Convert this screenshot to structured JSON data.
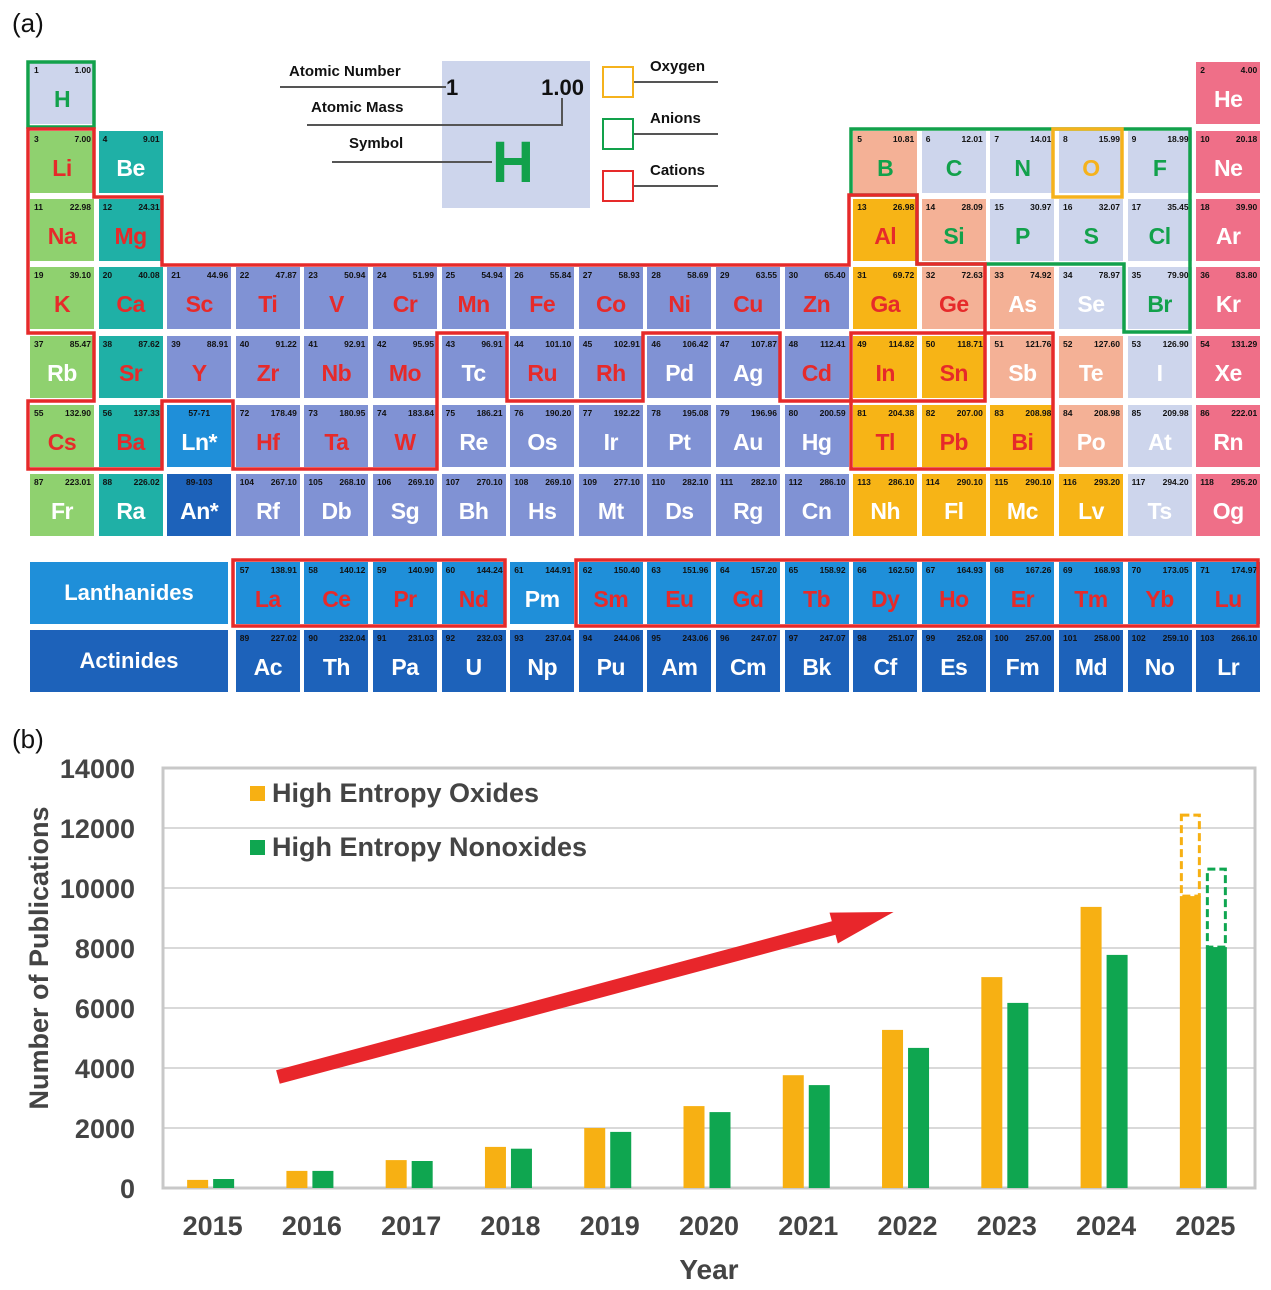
{
  "panel_a_label": "(a)",
  "panel_b_label": "(b)",
  "key": {
    "atomic_number_label": "Atomic Number",
    "atomic_mass_label": "Atomic Mass",
    "symbol_label": "Symbol",
    "example_number": "1",
    "example_mass": "1.00",
    "example_symbol": "H",
    "legend": [
      {
        "label": "Oxygen",
        "color": "#f5b21c"
      },
      {
        "label": "Anions",
        "color": "#12a14b"
      },
      {
        "label": "Cations",
        "color": "#e62a2a"
      }
    ]
  },
  "colors": {
    "nonmetal": "#cdd5ec",
    "alkali": "#8fd16f",
    "alkaline_earth": "#1fb0a6",
    "transition": "#8092d4",
    "post_transition": "#f7b416",
    "metalloid": "#f4b196",
    "noble": "#ef6f88",
    "lanthanide": "#1f8fd9",
    "actinide": "#1d62ba",
    "cation_text": "#e62a2a",
    "anion_text": "#12a14b",
    "oxygen_text": "#f5b21c",
    "plain_text": "#ffffff"
  },
  "series_labels": {
    "lanthanides": "Lanthanides",
    "actinides": "Actinides"
  },
  "elements": [
    {
      "n": "1",
      "m": "1.00",
      "s": "H",
      "r": 1,
      "c": 1,
      "cat": "nonmetal",
      "role": "anion"
    },
    {
      "n": "2",
      "m": "4.00",
      "s": "He",
      "r": 1,
      "c": 18,
      "cat": "noble",
      "role": "plain"
    },
    {
      "n": "3",
      "m": "7.00",
      "s": "Li",
      "r": 2,
      "c": 1,
      "cat": "alkali",
      "role": "cation"
    },
    {
      "n": "4",
      "m": "9.01",
      "s": "Be",
      "r": 2,
      "c": 2,
      "cat": "alkaline_earth",
      "role": "plain"
    },
    {
      "n": "5",
      "m": "10.81",
      "s": "B",
      "r": 2,
      "c": 13,
      "cat": "metalloid",
      "role": "anion"
    },
    {
      "n": "6",
      "m": "12.01",
      "s": "C",
      "r": 2,
      "c": 14,
      "cat": "nonmetal",
      "role": "anion"
    },
    {
      "n": "7",
      "m": "14.01",
      "s": "N",
      "r": 2,
      "c": 15,
      "cat": "nonmetal",
      "role": "anion"
    },
    {
      "n": "8",
      "m": "15.99",
      "s": "O",
      "r": 2,
      "c": 16,
      "cat": "nonmetal",
      "role": "oxygen"
    },
    {
      "n": "9",
      "m": "18.99",
      "s": "F",
      "r": 2,
      "c": 17,
      "cat": "nonmetal",
      "role": "anion"
    },
    {
      "n": "10",
      "m": "20.18",
      "s": "Ne",
      "r": 2,
      "c": 18,
      "cat": "noble",
      "role": "plain"
    },
    {
      "n": "11",
      "m": "22.98",
      "s": "Na",
      "r": 3,
      "c": 1,
      "cat": "alkali",
      "role": "cation"
    },
    {
      "n": "12",
      "m": "24.31",
      "s": "Mg",
      "r": 3,
      "c": 2,
      "cat": "alkaline_earth",
      "role": "cation"
    },
    {
      "n": "13",
      "m": "26.98",
      "s": "Al",
      "r": 3,
      "c": 13,
      "cat": "post_transition",
      "role": "cation"
    },
    {
      "n": "14",
      "m": "28.09",
      "s": "Si",
      "r": 3,
      "c": 14,
      "cat": "metalloid",
      "role": "anion"
    },
    {
      "n": "15",
      "m": "30.97",
      "s": "P",
      "r": 3,
      "c": 15,
      "cat": "nonmetal",
      "role": "anion"
    },
    {
      "n": "16",
      "m": "32.07",
      "s": "S",
      "r": 3,
      "c": 16,
      "cat": "nonmetal",
      "role": "anion"
    },
    {
      "n": "17",
      "m": "35.45",
      "s": "Cl",
      "r": 3,
      "c": 17,
      "cat": "nonmetal",
      "role": "anion"
    },
    {
      "n": "18",
      "m": "39.90",
      "s": "Ar",
      "r": 3,
      "c": 18,
      "cat": "noble",
      "role": "plain"
    },
    {
      "n": "19",
      "m": "39.10",
      "s": "K",
      "r": 4,
      "c": 1,
      "cat": "alkali",
      "role": "cation"
    },
    {
      "n": "20",
      "m": "40.08",
      "s": "Ca",
      "r": 4,
      "c": 2,
      "cat": "alkaline_earth",
      "role": "cation"
    },
    {
      "n": "21",
      "m": "44.96",
      "s": "Sc",
      "r": 4,
      "c": 3,
      "cat": "transition",
      "role": "cation"
    },
    {
      "n": "22",
      "m": "47.87",
      "s": "Ti",
      "r": 4,
      "c": 4,
      "cat": "transition",
      "role": "cation"
    },
    {
      "n": "23",
      "m": "50.94",
      "s": "V",
      "r": 4,
      "c": 5,
      "cat": "transition",
      "role": "cation"
    },
    {
      "n": "24",
      "m": "51.99",
      "s": "Cr",
      "r": 4,
      "c": 6,
      "cat": "transition",
      "role": "cation"
    },
    {
      "n": "25",
      "m": "54.94",
      "s": "Mn",
      "r": 4,
      "c": 7,
      "cat": "transition",
      "role": "cation"
    },
    {
      "n": "26",
      "m": "55.84",
      "s": "Fe",
      "r": 4,
      "c": 8,
      "cat": "transition",
      "role": "cation"
    },
    {
      "n": "27",
      "m": "58.93",
      "s": "Co",
      "r": 4,
      "c": 9,
      "cat": "transition",
      "role": "cation"
    },
    {
      "n": "28",
      "m": "58.69",
      "s": "Ni",
      "r": 4,
      "c": 10,
      "cat": "transition",
      "role": "cation"
    },
    {
      "n": "29",
      "m": "63.55",
      "s": "Cu",
      "r": 4,
      "c": 11,
      "cat": "transition",
      "role": "cation"
    },
    {
      "n": "30",
      "m": "65.40",
      "s": "Zn",
      "r": 4,
      "c": 12,
      "cat": "transition",
      "role": "cation"
    },
    {
      "n": "31",
      "m": "69.72",
      "s": "Ga",
      "r": 4,
      "c": 13,
      "cat": "post_transition",
      "role": "cation"
    },
    {
      "n": "32",
      "m": "72.63",
      "s": "Ge",
      "r": 4,
      "c": 14,
      "cat": "metalloid",
      "role": "cation"
    },
    {
      "n": "33",
      "m": "74.92",
      "s": "As",
      "r": 4,
      "c": 15,
      "cat": "metalloid",
      "role": "plain"
    },
    {
      "n": "34",
      "m": "78.97",
      "s": "Se",
      "r": 4,
      "c": 16,
      "cat": "nonmetal",
      "role": "plain"
    },
    {
      "n": "35",
      "m": "79.90",
      "s": "Br",
      "r": 4,
      "c": 17,
      "cat": "nonmetal",
      "role": "anion"
    },
    {
      "n": "36",
      "m": "83.80",
      "s": "Kr",
      "r": 4,
      "c": 18,
      "cat": "noble",
      "role": "plain"
    },
    {
      "n": "37",
      "m": "85.47",
      "s": "Rb",
      "r": 5,
      "c": 1,
      "cat": "alkali",
      "role": "plain"
    },
    {
      "n": "38",
      "m": "87.62",
      "s": "Sr",
      "r": 5,
      "c": 2,
      "cat": "alkaline_earth",
      "role": "cation"
    },
    {
      "n": "39",
      "m": "88.91",
      "s": "Y",
      "r": 5,
      "c": 3,
      "cat": "transition",
      "role": "cation"
    },
    {
      "n": "40",
      "m": "91.22",
      "s": "Zr",
      "r": 5,
      "c": 4,
      "cat": "transition",
      "role": "cation"
    },
    {
      "n": "41",
      "m": "92.91",
      "s": "Nb",
      "r": 5,
      "c": 5,
      "cat": "transition",
      "role": "cation"
    },
    {
      "n": "42",
      "m": "95.95",
      "s": "Mo",
      "r": 5,
      "c": 6,
      "cat": "transition",
      "role": "cation"
    },
    {
      "n": "43",
      "m": "96.91",
      "s": "Tc",
      "r": 5,
      "c": 7,
      "cat": "transition",
      "role": "plain"
    },
    {
      "n": "44",
      "m": "101.10",
      "s": "Ru",
      "r": 5,
      "c": 8,
      "cat": "transition",
      "role": "cation"
    },
    {
      "n": "45",
      "m": "102.91",
      "s": "Rh",
      "r": 5,
      "c": 9,
      "cat": "transition",
      "role": "cation"
    },
    {
      "n": "46",
      "m": "106.42",
      "s": "Pd",
      "r": 5,
      "c": 10,
      "cat": "transition",
      "role": "plain"
    },
    {
      "n": "47",
      "m": "107.87",
      "s": "Ag",
      "r": 5,
      "c": 11,
      "cat": "transition",
      "role": "plain"
    },
    {
      "n": "48",
      "m": "112.41",
      "s": "Cd",
      "r": 5,
      "c": 12,
      "cat": "transition",
      "role": "cation"
    },
    {
      "n": "49",
      "m": "114.82",
      "s": "In",
      "r": 5,
      "c": 13,
      "cat": "post_transition",
      "role": "cation"
    },
    {
      "n": "50",
      "m": "118.71",
      "s": "Sn",
      "r": 5,
      "c": 14,
      "cat": "post_transition",
      "role": "cation"
    },
    {
      "n": "51",
      "m": "121.76",
      "s": "Sb",
      "r": 5,
      "c": 15,
      "cat": "metalloid",
      "role": "plain"
    },
    {
      "n": "52",
      "m": "127.60",
      "s": "Te",
      "r": 5,
      "c": 16,
      "cat": "metalloid",
      "role": "plain"
    },
    {
      "n": "53",
      "m": "126.90",
      "s": "I",
      "r": 5,
      "c": 17,
      "cat": "nonmetal",
      "role": "plain"
    },
    {
      "n": "54",
      "m": "131.29",
      "s": "Xe",
      "r": 5,
      "c": 18,
      "cat": "noble",
      "role": "plain"
    },
    {
      "n": "55",
      "m": "132.90",
      "s": "Cs",
      "r": 6,
      "c": 1,
      "cat": "alkali",
      "role": "cation"
    },
    {
      "n": "56",
      "m": "137.33",
      "s": "Ba",
      "r": 6,
      "c": 2,
      "cat": "alkaline_earth",
      "role": "cation"
    },
    {
      "n": "57-71",
      "m": "",
      "s": "Ln*",
      "r": 6,
      "c": 3,
      "cat": "lanthanide",
      "role": "plain"
    },
    {
      "n": "72",
      "m": "178.49",
      "s": "Hf",
      "r": 6,
      "c": 4,
      "cat": "transition",
      "role": "cation"
    },
    {
      "n": "73",
      "m": "180.95",
      "s": "Ta",
      "r": 6,
      "c": 5,
      "cat": "transition",
      "role": "cation"
    },
    {
      "n": "74",
      "m": "183.84",
      "s": "W",
      "r": 6,
      "c": 6,
      "cat": "transition",
      "role": "cation"
    },
    {
      "n": "75",
      "m": "186.21",
      "s": "Re",
      "r": 6,
      "c": 7,
      "cat": "transition",
      "role": "plain"
    },
    {
      "n": "76",
      "m": "190.20",
      "s": "Os",
      "r": 6,
      "c": 8,
      "cat": "transition",
      "role": "plain"
    },
    {
      "n": "77",
      "m": "192.22",
      "s": "Ir",
      "r": 6,
      "c": 9,
      "cat": "transition",
      "role": "plain"
    },
    {
      "n": "78",
      "m": "195.08",
      "s": "Pt",
      "r": 6,
      "c": 10,
      "cat": "transition",
      "role": "plain"
    },
    {
      "n": "79",
      "m": "196.96",
      "s": "Au",
      "r": 6,
      "c": 11,
      "cat": "transition",
      "role": "plain"
    },
    {
      "n": "80",
      "m": "200.59",
      "s": "Hg",
      "r": 6,
      "c": 12,
      "cat": "transition",
      "role": "plain"
    },
    {
      "n": "81",
      "m": "204.38",
      "s": "Tl",
      "r": 6,
      "c": 13,
      "cat": "post_transition",
      "role": "cation"
    },
    {
      "n": "82",
      "m": "207.00",
      "s": "Pb",
      "r": 6,
      "c": 14,
      "cat": "post_transition",
      "role": "cation"
    },
    {
      "n": "83",
      "m": "208.98",
      "s": "Bi",
      "r": 6,
      "c": 15,
      "cat": "post_transition",
      "role": "cation"
    },
    {
      "n": "84",
      "m": "208.98",
      "s": "Po",
      "r": 6,
      "c": 16,
      "cat": "metalloid",
      "role": "plain"
    },
    {
      "n": "85",
      "m": "209.98",
      "s": "At",
      "r": 6,
      "c": 17,
      "cat": "nonmetal",
      "role": "plain"
    },
    {
      "n": "86",
      "m": "222.01",
      "s": "Rn",
      "r": 6,
      "c": 18,
      "cat": "noble",
      "role": "plain"
    },
    {
      "n": "87",
      "m": "223.01",
      "s": "Fr",
      "r": 7,
      "c": 1,
      "cat": "alkali",
      "role": "plain"
    },
    {
      "n": "88",
      "m": "226.02",
      "s": "Ra",
      "r": 7,
      "c": 2,
      "cat": "alkaline_earth",
      "role": "plain"
    },
    {
      "n": "89-103",
      "m": "",
      "s": "An*",
      "r": 7,
      "c": 3,
      "cat": "actinide",
      "role": "plain"
    },
    {
      "n": "104",
      "m": "267.10",
      "s": "Rf",
      "r": 7,
      "c": 4,
      "cat": "transition",
      "role": "plain"
    },
    {
      "n": "105",
      "m": "268.10",
      "s": "Db",
      "r": 7,
      "c": 5,
      "cat": "transition",
      "role": "plain"
    },
    {
      "n": "106",
      "m": "269.10",
      "s": "Sg",
      "r": 7,
      "c": 6,
      "cat": "transition",
      "role": "plain"
    },
    {
      "n": "107",
      "m": "270.10",
      "s": "Bh",
      "r": 7,
      "c": 7,
      "cat": "transition",
      "role": "plain"
    },
    {
      "n": "108",
      "m": "269.10",
      "s": "Hs",
      "r": 7,
      "c": 8,
      "cat": "transition",
      "role": "plain"
    },
    {
      "n": "109",
      "m": "277.10",
      "s": "Mt",
      "r": 7,
      "c": 9,
      "cat": "transition",
      "role": "plain"
    },
    {
      "n": "110",
      "m": "282.10",
      "s": "Ds",
      "r": 7,
      "c": 10,
      "cat": "transition",
      "role": "plain"
    },
    {
      "n": "111",
      "m": "282.10",
      "s": "Rg",
      "r": 7,
      "c": 11,
      "cat": "transition",
      "role": "plain"
    },
    {
      "n": "112",
      "m": "286.10",
      "s": "Cn",
      "r": 7,
      "c": 12,
      "cat": "transition",
      "role": "plain"
    },
    {
      "n": "113",
      "m": "286.10",
      "s": "Nh",
      "r": 7,
      "c": 13,
      "cat": "post_transition",
      "role": "plain"
    },
    {
      "n": "114",
      "m": "290.10",
      "s": "Fl",
      "r": 7,
      "c": 14,
      "cat": "post_transition",
      "role": "plain"
    },
    {
      "n": "115",
      "m": "290.10",
      "s": "Mc",
      "r": 7,
      "c": 15,
      "cat": "post_transition",
      "role": "plain"
    },
    {
      "n": "116",
      "m": "293.20",
      "s": "Lv",
      "r": 7,
      "c": 16,
      "cat": "post_transition",
      "role": "plain"
    },
    {
      "n": "117",
      "m": "294.20",
      "s": "Ts",
      "r": 7,
      "c": 17,
      "cat": "nonmetal",
      "role": "plain"
    },
    {
      "n": "118",
      "m": "295.20",
      "s": "Og",
      "r": 7,
      "c": 18,
      "cat": "noble",
      "role": "plain"
    },
    {
      "n": "57",
      "m": "138.91",
      "s": "La",
      "r": 9,
      "c": 4,
      "cat": "lanthanide",
      "role": "cation"
    },
    {
      "n": "58",
      "m": "140.12",
      "s": "Ce",
      "r": 9,
      "c": 5,
      "cat": "lanthanide",
      "role": "cation"
    },
    {
      "n": "59",
      "m": "140.90",
      "s": "Pr",
      "r": 9,
      "c": 6,
      "cat": "lanthanide",
      "role": "cation"
    },
    {
      "n": "60",
      "m": "144.24",
      "s": "Nd",
      "r": 9,
      "c": 7,
      "cat": "lanthanide",
      "role": "cation"
    },
    {
      "n": "61",
      "m": "144.91",
      "s": "Pm",
      "r": 9,
      "c": 8,
      "cat": "lanthanide",
      "role": "plain"
    },
    {
      "n": "62",
      "m": "150.40",
      "s": "Sm",
      "r": 9,
      "c": 9,
      "cat": "lanthanide",
      "role": "cation"
    },
    {
      "n": "63",
      "m": "151.96",
      "s": "Eu",
      "r": 9,
      "c": 10,
      "cat": "lanthanide",
      "role": "cation"
    },
    {
      "n": "64",
      "m": "157.20",
      "s": "Gd",
      "r": 9,
      "c": 11,
      "cat": "lanthanide",
      "role": "cation"
    },
    {
      "n": "65",
      "m": "158.92",
      "s": "Tb",
      "r": 9,
      "c": 12,
      "cat": "lanthanide",
      "role": "cation"
    },
    {
      "n": "66",
      "m": "162.50",
      "s": "Dy",
      "r": 9,
      "c": 13,
      "cat": "lanthanide",
      "role": "cation"
    },
    {
      "n": "67",
      "m": "164.93",
      "s": "Ho",
      "r": 9,
      "c": 14,
      "cat": "lanthanide",
      "role": "cation"
    },
    {
      "n": "68",
      "m": "167.26",
      "s": "Er",
      "r": 9,
      "c": 15,
      "cat": "lanthanide",
      "role": "cation"
    },
    {
      "n": "69",
      "m": "168.93",
      "s": "Tm",
      "r": 9,
      "c": 16,
      "cat": "lanthanide",
      "role": "cation"
    },
    {
      "n": "70",
      "m": "173.05",
      "s": "Yb",
      "r": 9,
      "c": 17,
      "cat": "lanthanide",
      "role": "cation"
    },
    {
      "n": "71",
      "m": "174.97",
      "s": "Lu",
      "r": 9,
      "c": 18,
      "cat": "lanthanide",
      "role": "cation"
    },
    {
      "n": "89",
      "m": "227.02",
      "s": "Ac",
      "r": 10,
      "c": 4,
      "cat": "actinide",
      "role": "plain"
    },
    {
      "n": "90",
      "m": "232.04",
      "s": "Th",
      "r": 10,
      "c": 5,
      "cat": "actinide",
      "role": "plain"
    },
    {
      "n": "91",
      "m": "231.03",
      "s": "Pa",
      "r": 10,
      "c": 6,
      "cat": "actinide",
      "role": "plain"
    },
    {
      "n": "92",
      "m": "232.03",
      "s": "U",
      "r": 10,
      "c": 7,
      "cat": "actinide",
      "role": "plain"
    },
    {
      "n": "93",
      "m": "237.04",
      "s": "Np",
      "r": 10,
      "c": 8,
      "cat": "actinide",
      "role": "plain"
    },
    {
      "n": "94",
      "m": "244.06",
      "s": "Pu",
      "r": 10,
      "c": 9,
      "cat": "actinide",
      "role": "plain"
    },
    {
      "n": "95",
      "m": "243.06",
      "s": "Am",
      "r": 10,
      "c": 10,
      "cat": "actinide",
      "role": "plain"
    },
    {
      "n": "96",
      "m": "247.07",
      "s": "Cm",
      "r": 10,
      "c": 11,
      "cat": "actinide",
      "role": "plain"
    },
    {
      "n": "97",
      "m": "247.07",
      "s": "Bk",
      "r": 10,
      "c": 12,
      "cat": "actinide",
      "role": "plain"
    },
    {
      "n": "98",
      "m": "251.07",
      "s": "Cf",
      "r": 10,
      "c": 13,
      "cat": "actinide",
      "role": "plain"
    },
    {
      "n": "99",
      "m": "252.08",
      "s": "Es",
      "r": 10,
      "c": 14,
      "cat": "actinide",
      "role": "plain"
    },
    {
      "n": "100",
      "m": "257.00",
      "s": "Fm",
      "r": 10,
      "c": 15,
      "cat": "actinide",
      "role": "plain"
    },
    {
      "n": "101",
      "m": "258.00",
      "s": "Md",
      "r": 10,
      "c": 16,
      "cat": "actinide",
      "role": "plain"
    },
    {
      "n": "102",
      "m": "259.10",
      "s": "No",
      "r": 10,
      "c": 17,
      "cat": "actinide",
      "role": "plain"
    },
    {
      "n": "103",
      "m": "266.10",
      "s": "Lr",
      "r": 10,
      "c": 18,
      "cat": "actinide",
      "role": "plain"
    }
  ],
  "chart_data": {
    "type": "bar",
    "title": "",
    "xlabel": "Year",
    "ylabel": "Number of Publications",
    "ylim": [
      0,
      14000
    ],
    "yticks": [
      0,
      2000,
      4000,
      6000,
      8000,
      10000,
      12000,
      14000
    ],
    "grid": true,
    "legend_position": "top-left",
    "categories": [
      "2015",
      "2016",
      "2017",
      "2018",
      "2019",
      "2020",
      "2021",
      "2022",
      "2023",
      "2024",
      "2025"
    ],
    "series": [
      {
        "name": "High Entropy Oxides",
        "color": "#f7b013",
        "values": [
          270,
          570,
          930,
          1370,
          2000,
          2730,
          3760,
          5270,
          7030,
          9370,
          9730
        ],
        "projected": {
          "2025": 12430
        }
      },
      {
        "name": "High Entropy Nonoxides",
        "color": "#0fa650",
        "values": [
          300,
          570,
          900,
          1310,
          1870,
          2530,
          3430,
          4670,
          6170,
          7770,
          8030
        ],
        "projected": {
          "2025": 10630
        }
      }
    ],
    "annotations": [
      {
        "type": "arrow",
        "color": "#e8262b",
        "meaning": "increasing trend",
        "from": {
          "year": "2016",
          "value": 3700
        },
        "to": {
          "year": "2022",
          "value": 9200
        }
      }
    ]
  }
}
